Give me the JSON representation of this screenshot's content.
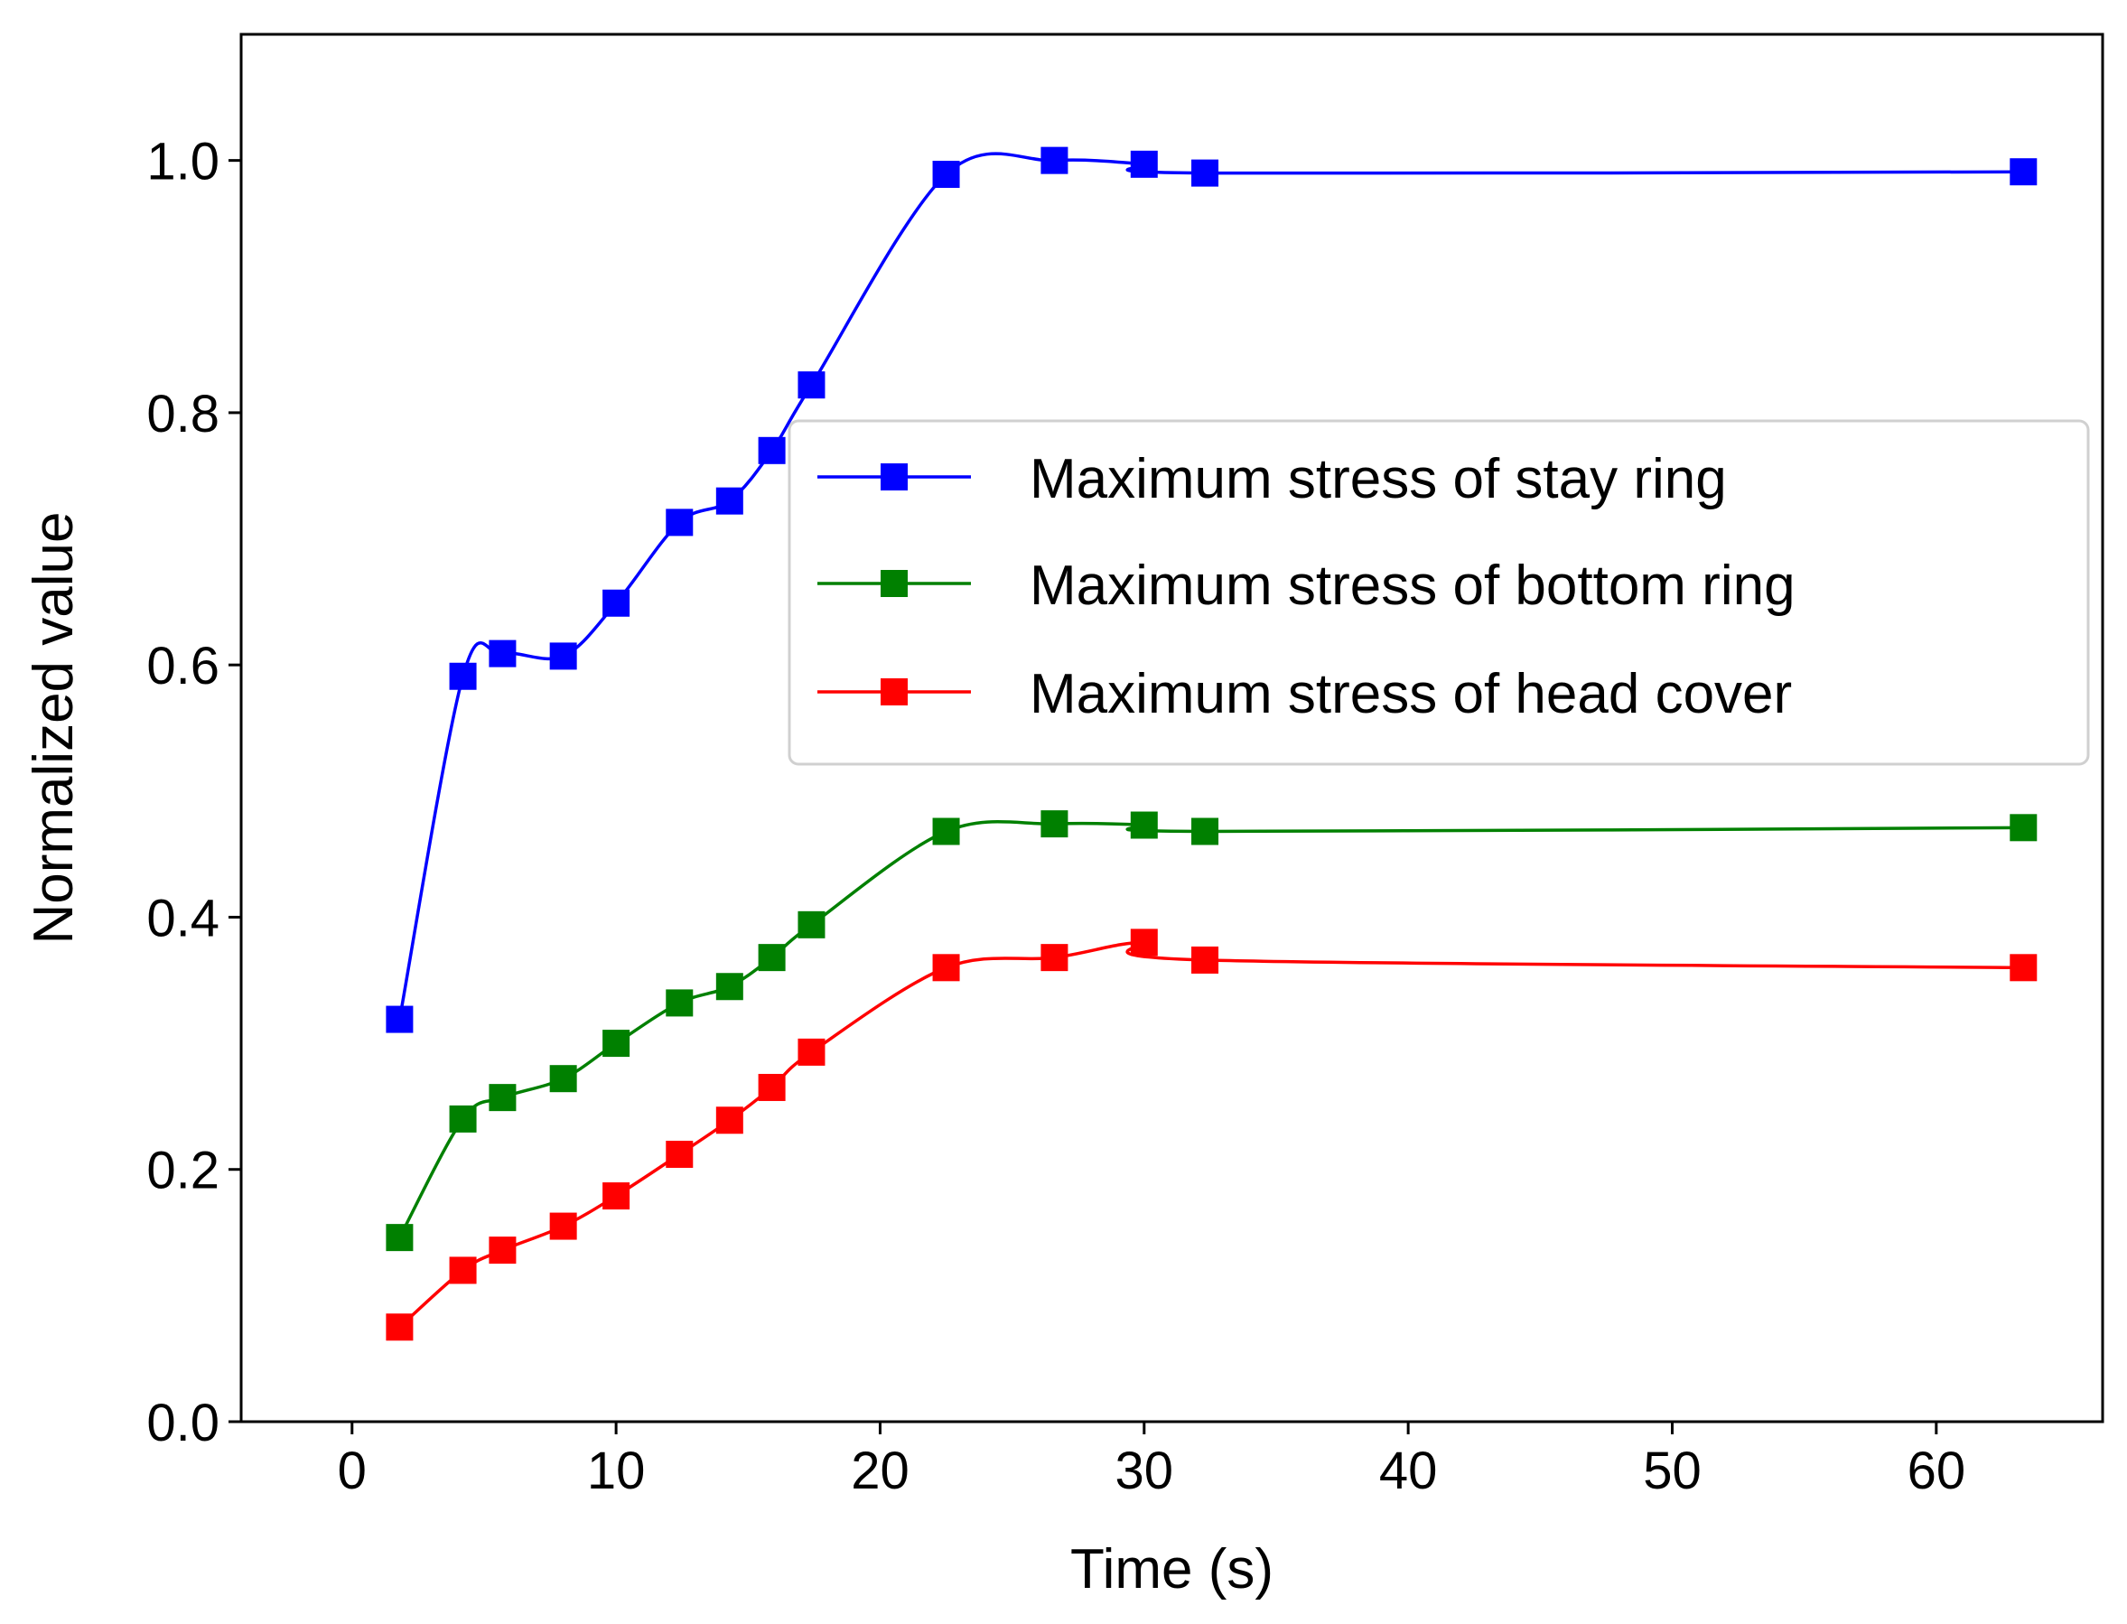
{
  "chart_data": {
    "type": "line",
    "title": "",
    "xlabel": "Time (s)",
    "ylabel": "Normalized value",
    "xlim": [
      -4.2,
      66.3
    ],
    "ylim": [
      0.0,
      1.1
    ],
    "x_ticks": [
      0,
      10,
      20,
      30,
      40,
      50,
      60
    ],
    "x_tick_labels": [
      "0",
      "10",
      "20",
      "30",
      "40",
      "50",
      "60"
    ],
    "y_ticks": [
      0.0,
      0.2,
      0.4,
      0.6,
      0.8,
      1.0
    ],
    "y_tick_labels": [
      "0.0",
      "0.2",
      "0.4",
      "0.6",
      "0.8",
      "1.0"
    ],
    "grid": false,
    "legend_position": "center-right",
    "marker": "square",
    "line_style": "smooth",
    "x": [
      1.8,
      4.2,
      5.7,
      8.0,
      10.0,
      12.4,
      14.3,
      15.9,
      17.4,
      22.5,
      26.6,
      30.0,
      32.3,
      63.3
    ],
    "series": [
      {
        "name": "Maximum stress of stay ring",
        "color": "#0000ff",
        "values": [
          0.319,
          0.591,
          0.609,
          0.607,
          0.649,
          0.713,
          0.73,
          0.77,
          0.822,
          0.989,
          1.0,
          0.997,
          0.99,
          0.991
        ]
      },
      {
        "name": "Maximum stress of bottom ring",
        "color": "#008000",
        "values": [
          0.146,
          0.24,
          0.257,
          0.272,
          0.3,
          0.332,
          0.345,
          0.368,
          0.394,
          0.468,
          0.474,
          0.473,
          0.468,
          0.471
        ]
      },
      {
        "name": "Maximum stress of head cover",
        "color": "#ff0000",
        "values": [
          0.075,
          0.12,
          0.136,
          0.155,
          0.179,
          0.212,
          0.239,
          0.265,
          0.293,
          0.36,
          0.368,
          0.38,
          0.366,
          0.36
        ]
      }
    ]
  }
}
